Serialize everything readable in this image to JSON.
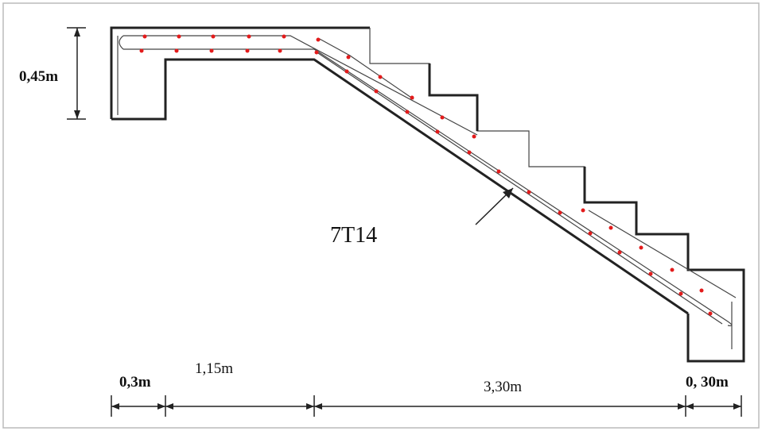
{
  "labels": {
    "height": "0,45m",
    "rebar": "7T14",
    "dim_left": "0,3m",
    "dim_landing": "1,15m",
    "dim_flight": "3,30m",
    "dim_right": "0, 30m"
  }
}
